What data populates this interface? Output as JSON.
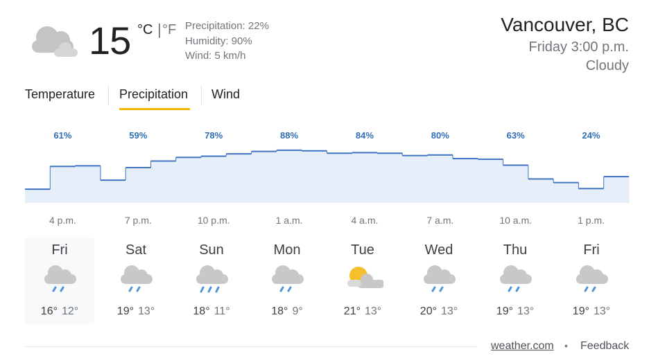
{
  "current": {
    "temperature": "15",
    "unit_c": "°C",
    "unit_separator": "|",
    "unit_f": "°F",
    "precipitation": "Precipitation: 22%",
    "humidity": "Humidity: 90%",
    "wind": "Wind: 5 km/h"
  },
  "location": {
    "city": "Vancouver, BC",
    "time": "Friday 3:00 p.m.",
    "condition": "Cloudy"
  },
  "tabs": [
    "Temperature",
    "Precipitation",
    "Wind"
  ],
  "chart_data": {
    "type": "step",
    "categories": [
      null,
      "4 p.m.",
      null,
      null,
      "7 p.m.",
      null,
      null,
      "10 p.m.",
      null,
      null,
      "1 a.m.",
      null,
      null,
      "4 a.m.",
      null,
      null,
      "7 a.m.",
      null,
      null,
      "10 a.m.",
      null,
      null,
      "1 p.m.",
      null
    ],
    "values": [
      23,
      61,
      62,
      38,
      59,
      70,
      76,
      78,
      82,
      86,
      88,
      87,
      83,
      84,
      83,
      79,
      80,
      74,
      73,
      63,
      40,
      34,
      24,
      44
    ],
    "value_labels": [
      null,
      "61%",
      null,
      null,
      "59%",
      null,
      null,
      "78%",
      null,
      null,
      "88%",
      null,
      null,
      "84%",
      null,
      null,
      "80%",
      null,
      null,
      "63%",
      null,
      null,
      "24%",
      null
    ],
    "ylim": [
      0,
      100
    ],
    "color": "#3f73c2"
  },
  "days": [
    {
      "day": "Fri",
      "high": "16°",
      "low": "12°"
    },
    {
      "day": "Sat",
      "high": "19°",
      "low": "13°"
    },
    {
      "day": "Sun",
      "high": "18°",
      "low": "11°"
    },
    {
      "day": "Mon",
      "high": "18°",
      "low": "9°"
    },
    {
      "day": "Tue",
      "high": "21°",
      "low": "13°"
    },
    {
      "day": "Wed",
      "high": "20°",
      "low": "13°"
    },
    {
      "day": "Thu",
      "high": "19°",
      "low": "13°"
    },
    {
      "day": "Fri",
      "high": "19°",
      "low": "13°"
    }
  ],
  "footer": {
    "source": "weather.com",
    "separator": "•",
    "feedback": "Feedback"
  }
}
